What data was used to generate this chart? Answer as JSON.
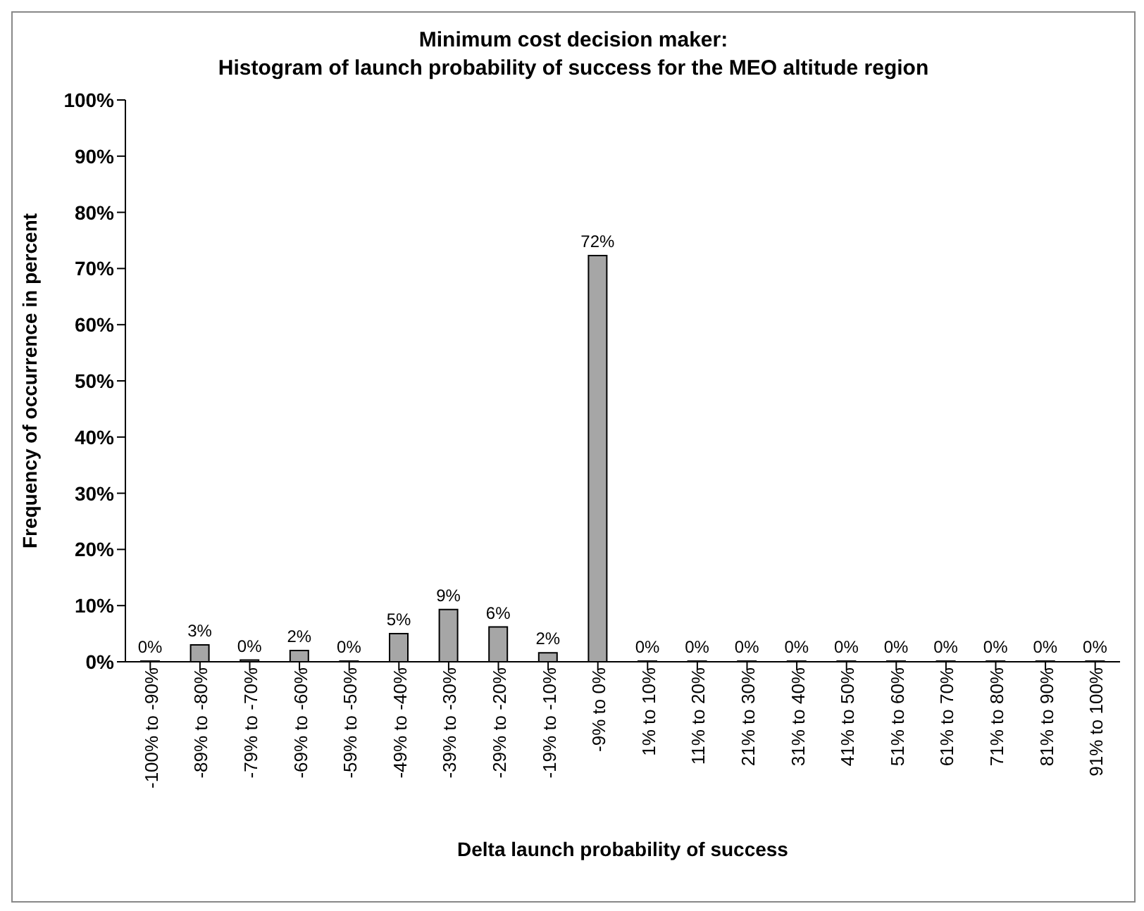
{
  "chart_data": {
    "type": "bar",
    "title": "Minimum cost decision maker:\nHistogram of launch probability of success for the MEO altitude region",
    "xlabel": "Delta launch probability of success",
    "ylabel": "Frequency of occurrence in percent",
    "categories": [
      "-100% to -90%",
      "-89% to -80%",
      "-79% to -70%",
      "-69% to -60%",
      "-59% to -50%",
      "-49% to -40%",
      "-39% to -30%",
      "-29% to -20%",
      "-19% to -10%",
      "-9% to 0%",
      "1% to 10%",
      "11% to 20%",
      "21% to 30%",
      "31% to 40%",
      "41% to 50%",
      "51% to 60%",
      "61% to 70%",
      "71% to 80%",
      "81% to 90%",
      "91% to 100%"
    ],
    "values": [
      0,
      3,
      0.3,
      2,
      0,
      5,
      9.3,
      6.2,
      1.6,
      72.3,
      0,
      0,
      0,
      0,
      0,
      0,
      0,
      0,
      0,
      0
    ],
    "value_labels": [
      "0%",
      "3%",
      "0%",
      "2%",
      "0%",
      "5%",
      "9%",
      "6%",
      "2%",
      "72%",
      "0%",
      "0%",
      "0%",
      "0%",
      "0%",
      "0%",
      "0%",
      "0%",
      "0%",
      "0%"
    ],
    "color": "#a6a6a6",
    "ylim": [
      0,
      100
    ],
    "yticks": [
      {
        "value": 0,
        "label": "0%"
      },
      {
        "value": 10,
        "label": "10%"
      },
      {
        "value": 20,
        "label": "20%"
      },
      {
        "value": 30,
        "label": "30%"
      },
      {
        "value": 40,
        "label": "40%"
      },
      {
        "value": 50,
        "label": "50%"
      },
      {
        "value": 60,
        "label": "60%"
      },
      {
        "value": 70,
        "label": "70%"
      },
      {
        "value": 80,
        "label": "80%"
      },
      {
        "value": 90,
        "label": "90%"
      },
      {
        "value": 100,
        "label": "100%"
      }
    ],
    "grid": false,
    "legend": false
  }
}
